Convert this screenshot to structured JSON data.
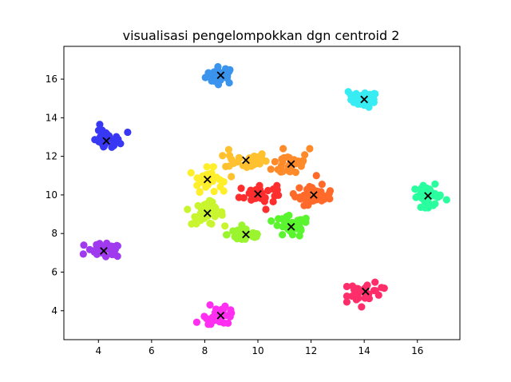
{
  "chart_data": {
    "type": "scatter",
    "title": "visualisasi pengelompokkan dgn centroid 2",
    "xlabel": "",
    "ylabel": "",
    "xlim": [
      2.7,
      17.6
    ],
    "ylim": [
      2.5,
      17.7
    ],
    "grid": false,
    "x_ticks": [
      4,
      6,
      8,
      10,
      12,
      14,
      16
    ],
    "y_ticks": [
      4,
      6,
      8,
      10,
      12,
      14,
      16
    ],
    "x_tick_labels": [
      "4",
      "6",
      "8",
      "10",
      "12",
      "14",
      "16"
    ],
    "y_tick_labels": [
      "4",
      "6",
      "8",
      "10",
      "12",
      "14",
      "16"
    ],
    "centroid_marker": "x",
    "centroid_color": "#000000",
    "clusters": [
      {
        "centroid": [
          8.6,
          16.2
        ],
        "color": "#3a94ee",
        "spread": [
          0.28,
          0.22
        ],
        "extra_points": []
      },
      {
        "centroid": [
          14.0,
          14.95
        ],
        "color": "#38ecf4",
        "spread": [
          0.25,
          0.2
        ],
        "extra_points": [
          [
            13.4,
            15.35
          ]
        ]
      },
      {
        "centroid": [
          4.3,
          12.8
        ],
        "color": "#3838f4",
        "spread": [
          0.25,
          0.25
        ],
        "extra_points": [
          [
            5.1,
            13.25
          ],
          [
            4.05,
            13.65
          ]
        ]
      },
      {
        "centroid": [
          9.55,
          11.8
        ],
        "color": "#ffc12e",
        "spread": [
          0.4,
          0.22
        ],
        "extra_points": [
          [
            8.9,
            12.35
          ],
          [
            9.0,
            10.95
          ]
        ]
      },
      {
        "centroid": [
          11.25,
          11.6
        ],
        "color": "#ff8a2a",
        "spread": [
          0.35,
          0.32
        ],
        "extra_points": [
          [
            11.95,
            12.4
          ],
          [
            10.95,
            12.4
          ]
        ]
      },
      {
        "centroid": [
          8.1,
          10.8
        ],
        "color": "#ffee2a",
        "spread": [
          0.28,
          0.3
        ],
        "extra_points": []
      },
      {
        "centroid": [
          10.0,
          10.05
        ],
        "color": "#ff2e2e",
        "spread": [
          0.35,
          0.25
        ],
        "extra_points": [
          [
            10.3,
            9.25
          ]
        ]
      },
      {
        "centroid": [
          12.1,
          10.0
        ],
        "color": "#ff6a2a",
        "spread": [
          0.35,
          0.25
        ],
        "extra_points": [
          [
            12.7,
            9.8
          ],
          [
            12.2,
            11.0
          ]
        ]
      },
      {
        "centroid": [
          16.4,
          9.95
        ],
        "color": "#2affa0",
        "spread": [
          0.28,
          0.28
        ],
        "extra_points": [
          [
            17.1,
            9.75
          ]
        ]
      },
      {
        "centroid": [
          8.1,
          9.05
        ],
        "color": "#c8f52e",
        "spread": [
          0.3,
          0.3
        ],
        "extra_points": [
          [
            7.35,
            9.25
          ]
        ]
      },
      {
        "centroid": [
          9.55,
          7.95
        ],
        "color": "#9af52e",
        "spread": [
          0.35,
          0.22
        ],
        "extra_points": []
      },
      {
        "centroid": [
          11.25,
          8.35
        ],
        "color": "#5af52e",
        "spread": [
          0.35,
          0.28
        ],
        "extra_points": [
          [
            10.5,
            8.65
          ]
        ]
      },
      {
        "centroid": [
          4.2,
          7.1
        ],
        "color": "#a03aee",
        "spread": [
          0.35,
          0.18
        ],
        "extra_points": [
          [
            3.45,
            7.4
          ]
        ]
      },
      {
        "centroid": [
          14.05,
          5.0
        ],
        "color": "#ff2e6a",
        "spread": [
          0.32,
          0.25
        ],
        "extra_points": [
          [
            13.9,
            4.2
          ],
          [
            14.65,
            5.2
          ]
        ]
      },
      {
        "centroid": [
          8.6,
          3.75
        ],
        "color": "#ff2ef0",
        "spread": [
          0.28,
          0.22
        ],
        "extra_points": [
          [
            7.7,
            3.4
          ],
          [
            8.2,
            4.3
          ]
        ]
      }
    ]
  }
}
